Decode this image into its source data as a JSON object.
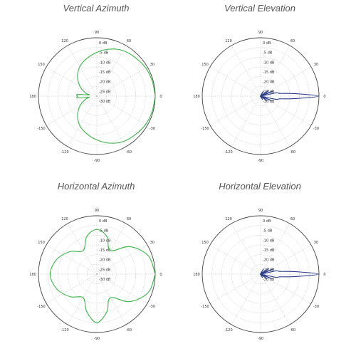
{
  "chart_data": [
    {
      "type": "polar",
      "title": "Vertical Azimuth",
      "angle_ticks": [
        "90",
        "60",
        "30",
        "0",
        "-30",
        "-60",
        "-90",
        "-120",
        "-150",
        "180",
        "150",
        "120"
      ],
      "radial_ticks": [
        "0 dB",
        "-5 dB",
        "-10 dB",
        "-15 dB",
        "-20 dB",
        "-25 dB",
        "-30 dB"
      ],
      "radial_range": [
        -30,
        0
      ],
      "grid": true,
      "series": [
        {
          "color": "#3cb54a",
          "angles_deg": [
            0,
            15,
            30,
            45,
            60,
            75,
            90,
            105,
            120,
            135,
            150,
            165,
            170,
            175,
            180,
            185,
            190,
            195,
            210,
            225,
            240,
            255,
            270,
            285,
            300,
            315,
            330,
            345,
            360
          ],
          "values_db": [
            0,
            -0.5,
            -1,
            -2,
            -3,
            -5,
            -7.5,
            -10,
            -12.5,
            -16,
            -20,
            -24,
            -26,
            -20,
            -20,
            -20,
            -26,
            -24,
            -20,
            -16,
            -12.5,
            -10,
            -7.5,
            -5,
            -3,
            -2,
            -1,
            -0.5,
            0
          ]
        }
      ]
    },
    {
      "type": "polar",
      "title": "Vertical Elevation",
      "angle_ticks": [
        "90",
        "60",
        "30",
        "0",
        "-30",
        "-60",
        "-90",
        "-120",
        "-150",
        "180",
        "150",
        "120"
      ],
      "radial_ticks": [
        "0 dB",
        "-5 dB",
        "-10 dB",
        "-15 dB",
        "-20 dB",
        "-25 dB",
        "-30 dB"
      ],
      "radial_range": [
        -30,
        0
      ],
      "grid": true,
      "series": [
        {
          "color": "#2c3e8c",
          "angles_deg": [
            -80,
            -60,
            -45,
            -35,
            -28,
            -22,
            -16,
            -12,
            -8,
            -4,
            0,
            4,
            8,
            12,
            16,
            22,
            28,
            35,
            45,
            60,
            80,
            90
          ],
          "values_db": [
            -30,
            -28,
            -30,
            -26,
            -30,
            -24,
            -30,
            -22,
            -20,
            -12,
            0,
            -12,
            -20,
            -22,
            -30,
            -23,
            -30,
            -25,
            -30,
            -27,
            -30,
            -30
          ]
        }
      ]
    },
    {
      "type": "polar",
      "title": "Horizontal Azimuth",
      "angle_ticks": [
        "90",
        "60",
        "30",
        "0",
        "-30",
        "-60",
        "-90",
        "-120",
        "-150",
        "180",
        "150",
        "120"
      ],
      "radial_ticks": [
        "0 dB",
        "-5 dB",
        "-10 dB",
        "-15 dB",
        "-20 dB",
        "-25 dB",
        "-30 dB"
      ],
      "radial_range": [
        -30,
        0
      ],
      "grid": true,
      "series": [
        {
          "color": "#3cb54a",
          "angles_deg": [
            0,
            20,
            40,
            60,
            75,
            90,
            105,
            120,
            140,
            160,
            180,
            200,
            220,
            240,
            255,
            270,
            285,
            300,
            320,
            340,
            360
          ],
          "values_db": [
            0,
            -2,
            -8,
            -16,
            -10,
            -7,
            -10,
            -16,
            -12,
            -8,
            -6,
            -8,
            -12,
            -16,
            -10,
            -5,
            -10,
            -16,
            -8,
            -2,
            0
          ]
        }
      ]
    },
    {
      "type": "polar",
      "title": "Horizontal Elevation",
      "angle_ticks": [
        "90",
        "60",
        "30",
        "0",
        "-30",
        "-60",
        "-90",
        "-120",
        "-150",
        "180",
        "150",
        "120"
      ],
      "radial_ticks": [
        "0 dB",
        "-5 dB",
        "-10 dB",
        "-15 dB",
        "-20 dB",
        "-25 dB",
        "-30 dB"
      ],
      "radial_range": [
        -30,
        0
      ],
      "grid": true,
      "series": [
        {
          "color": "#2c3e8c",
          "angles_deg": [
            -80,
            -60,
            -45,
            -35,
            -28,
            -22,
            -16,
            -12,
            -8,
            -4,
            0,
            4,
            8,
            12,
            16,
            22,
            28,
            35,
            45,
            60,
            80,
            90
          ],
          "values_db": [
            -30,
            -28,
            -30,
            -26,
            -30,
            -24,
            -30,
            -22,
            -20,
            -12,
            0,
            -12,
            -20,
            -22,
            -30,
            -23,
            -30,
            -25,
            -30,
            -27,
            -30,
            -30
          ]
        }
      ]
    }
  ]
}
